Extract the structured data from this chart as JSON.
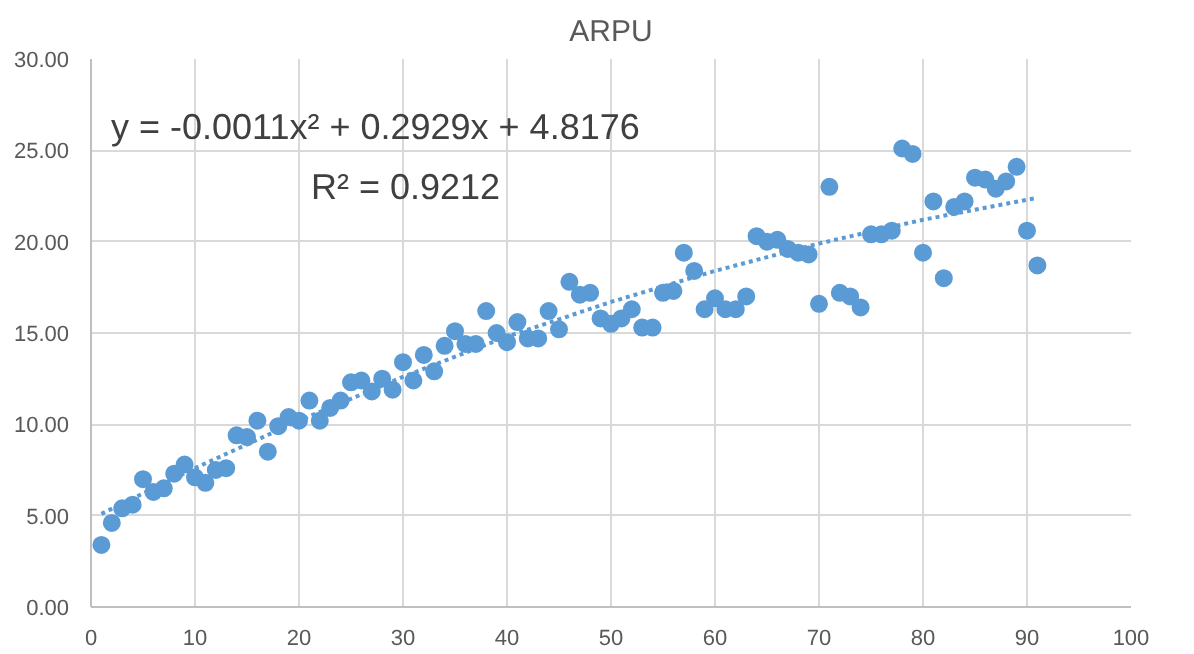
{
  "chart_data": {
    "type": "scatter",
    "title": "ARPU",
    "marker": "circle",
    "grid": true,
    "xlim": [
      0,
      100
    ],
    "xticks": [
      0,
      10,
      20,
      30,
      40,
      50,
      60,
      70,
      80,
      90,
      100
    ],
    "ylim": [
      0,
      30
    ],
    "yticks": [
      {
        "value": 0,
        "label": "0.00"
      },
      {
        "value": 5,
        "label": "5.00"
      },
      {
        "value": 10,
        "label": "10.00"
      },
      {
        "value": 15,
        "label": "15.00"
      },
      {
        "value": 20,
        "label": "20.00"
      },
      {
        "value": 25,
        "label": "25.00"
      },
      {
        "value": 30,
        "label": "30.00"
      }
    ],
    "annotations": [
      "y = -0.0011x² + 0.2929x + 4.8176",
      "R² = 0.9212"
    ],
    "series": [
      {
        "color": "#5b9bd5",
        "x": [
          1,
          2,
          3,
          4,
          5,
          6,
          7,
          8,
          9,
          10,
          11,
          12,
          13,
          14,
          15,
          16,
          17,
          18,
          19,
          20,
          21,
          22,
          23,
          24,
          25,
          26,
          27,
          28,
          29,
          30,
          31,
          32,
          33,
          34,
          35,
          36,
          37,
          38,
          39,
          40,
          41,
          42,
          43,
          44,
          45,
          46,
          47,
          48,
          49,
          50,
          51,
          52,
          53,
          54,
          55,
          56,
          57,
          58,
          59,
          60,
          61,
          62,
          63,
          64,
          65,
          66,
          67,
          68,
          69,
          70,
          71,
          72,
          73,
          74,
          75,
          76,
          77,
          78,
          79,
          80,
          81,
          82,
          83,
          84,
          85,
          86,
          87,
          88,
          89,
          90,
          91
        ],
        "values": [
          3.4,
          4.6,
          5.4,
          5.6,
          7.0,
          6.3,
          6.5,
          7.3,
          7.8,
          7.1,
          6.8,
          7.5,
          7.6,
          9.4,
          9.3,
          10.2,
          8.5,
          9.9,
          10.4,
          10.2,
          11.3,
          10.2,
          10.9,
          11.3,
          12.3,
          12.4,
          11.8,
          12.5,
          11.9,
          13.4,
          12.4,
          13.8,
          12.9,
          14.3,
          15.1,
          14.4,
          14.4,
          16.2,
          15.0,
          14.5,
          15.6,
          14.7,
          14.7,
          16.2,
          15.2,
          17.8,
          17.1,
          17.2,
          15.8,
          15.5,
          15.8,
          16.3,
          15.3,
          15.3,
          17.2,
          17.3,
          19.4,
          18.4,
          16.3,
          16.9,
          16.3,
          16.3,
          17.0,
          20.3,
          20.0,
          20.1,
          19.6,
          19.4,
          19.3,
          16.6,
          23.0,
          17.2,
          17.0,
          16.4,
          20.4,
          20.4,
          20.6,
          25.1,
          24.8,
          19.4,
          22.2,
          18.0,
          21.9,
          22.2,
          23.5,
          23.4,
          22.9,
          23.3,
          24.1,
          20.6,
          18.7
        ]
      },
      {
        "type": "line",
        "color": "#5b9bd5",
        "line_style": "dotted",
        "marker": "none",
        "x": [
          1,
          10,
          20,
          30,
          40,
          50,
          60,
          70,
          80,
          91
        ],
        "values": [
          5.1,
          7.6,
          10.2,
          12.6,
          14.8,
          16.7,
          18.4,
          19.9,
          21.2,
          22.4
        ]
      }
    ]
  }
}
